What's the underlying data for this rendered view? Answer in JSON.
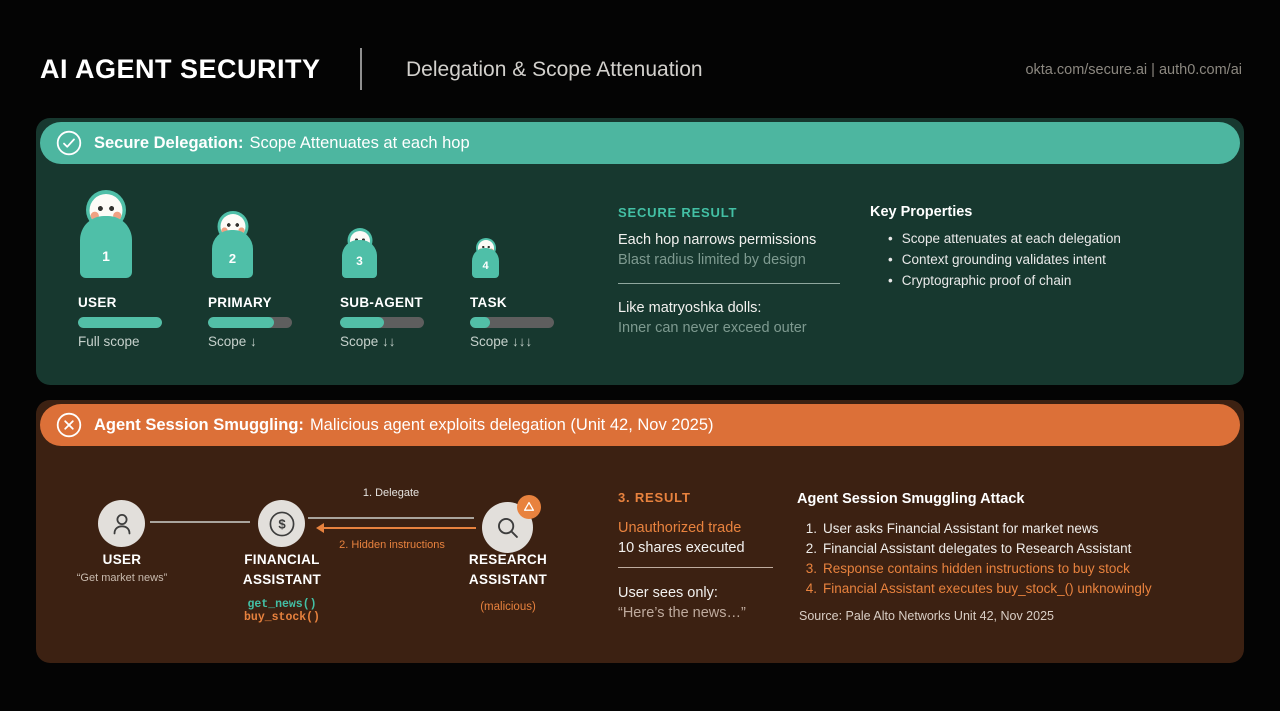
{
  "header": {
    "title": "AI AGENT SECURITY",
    "subtitle": "Delegation & Scope Attenuation",
    "links": "okta.com/secure.ai | auth0.com/ai"
  },
  "colors": {
    "background": "#040404",
    "teal_band": "#4DB6A0",
    "teal_accent": "#43C0A5",
    "panel_green": "#17382F",
    "orange_band": "#DC7038",
    "orange_accent": "#E8823E",
    "panel_brown": "#3C2112",
    "scope_track": "#5E5E5E",
    "scope_fill": "#52BFA7",
    "node_circle": "#E2DFDB"
  },
  "secure_panel": {
    "band_title": "Secure Delegation:",
    "band_subtitle": "Scope Attenuates at each hop",
    "dolls": [
      {
        "number": "1",
        "label": "USER",
        "scope_pct": 100,
        "scope_label": "Full scope"
      },
      {
        "number": "2",
        "label": "PRIMARY",
        "scope_pct": 78,
        "scope_label": "Scope ↓"
      },
      {
        "number": "3",
        "label": "SUB-AGENT",
        "scope_pct": 52,
        "scope_label": "Scope ↓↓"
      },
      {
        "number": "4",
        "label": "TASK",
        "scope_pct": 24,
        "scope_label": "Scope ↓↓↓"
      }
    ],
    "result": {
      "heading": "SECURE RESULT",
      "line1": "Each hop narrows permissions",
      "line2": "Blast radius limited by design",
      "line3": "Like matryoshka dolls:",
      "line4": "Inner can never exceed outer"
    },
    "properties": {
      "heading": "Key Properties",
      "bullet": "•",
      "items": [
        "Scope attenuates at each delegation",
        "Context grounding validates intent",
        "Cryptographic proof of chain"
      ]
    }
  },
  "attack_panel": {
    "band_title": "Agent Session Smuggling:",
    "band_subtitle": "Malicious agent exploits delegation (Unit 42, Nov 2025)",
    "diagram": {
      "user_label": "USER",
      "user_quote": "“Get market news”",
      "financial_label1": "FINANCIAL",
      "financial_label2": "ASSISTANT",
      "fn_good": "get_news()",
      "fn_bad": "buy_stock()",
      "research_label1": "RESEARCH",
      "research_label2": "ASSISTANT",
      "research_note": "(malicious)",
      "arrow1_label": "1. Delegate",
      "arrow2_label": "2. Hidden instructions"
    },
    "result": {
      "heading": "3. RESULT",
      "line1": "Unauthorized trade",
      "line2": "10 shares executed",
      "line3": "User sees only:",
      "line4": "“Here’s the news…”"
    },
    "attack": {
      "heading": "Agent Session Smuggling Attack",
      "steps": [
        {
          "num": "1.",
          "text": "User asks Financial Assistant for market news",
          "highlight": false
        },
        {
          "num": "2.",
          "text": "Financial Assistant delegates to Research Assistant",
          "highlight": false
        },
        {
          "num": "3.",
          "text": "Response contains hidden instructions to buy stock",
          "highlight": true
        },
        {
          "num": "4.",
          "text": "Financial Assistant executes buy_stock_() unknowingly",
          "highlight": true
        }
      ],
      "source": "Source: Pale Alto Networks Unit 42, Nov 2025"
    }
  }
}
